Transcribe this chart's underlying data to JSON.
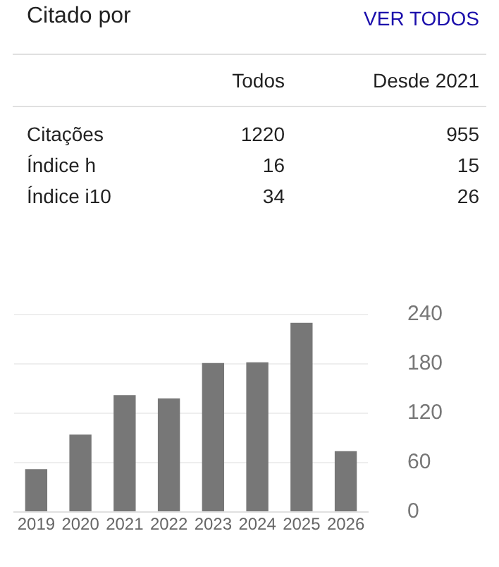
{
  "chart_data": [
    {
      "type": "other",
      "title": "Citado por",
      "annotations": [
        "VER TODOS",
        "Todos",
        "Desde 2021",
        "Citações",
        "1220",
        "955",
        "Índice h",
        "16",
        "15",
        "Índice i10",
        "34",
        "26"
      ]
    },
    {
      "type": "bar",
      "categories": [
        "2019",
        "2020",
        "2021",
        "2022",
        "2023",
        "2024",
        "2025",
        "2026"
      ],
      "values": [
        52,
        94,
        142,
        138,
        181,
        182,
        230,
        74
      ],
      "color": "#777777",
      "ylim": [
        0,
        240
      ],
      "yticks": [
        0,
        60,
        120,
        180,
        240
      ],
      "grid": "y",
      "legend": false
    }
  ]
}
